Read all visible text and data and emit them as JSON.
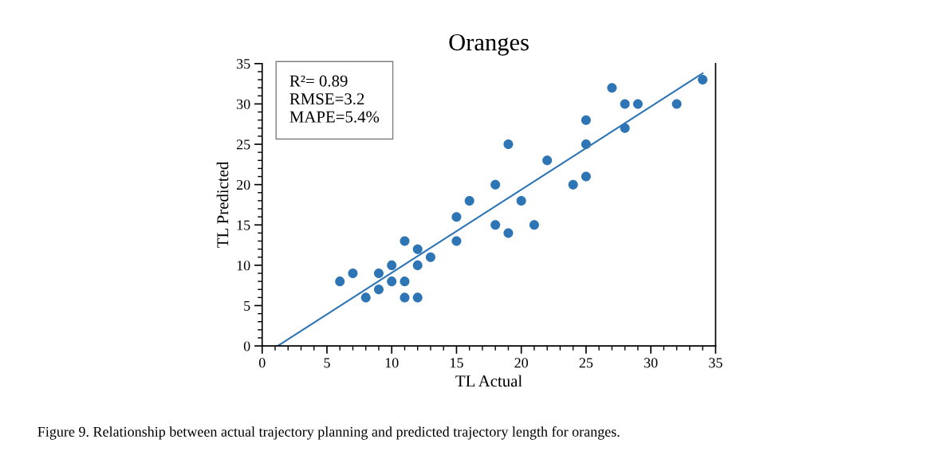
{
  "chart_data": {
    "type": "scatter",
    "title": "Oranges",
    "xlabel": "TL Actual",
    "ylabel": "TL Predicted",
    "annotations": [
      "R²= 0.89\nRMSE=3.2\nMAPE=5.4%",
      "Figure 9. Relationship between actual trajectory planning and predicted trajectory length for oranges."
    ],
    "x": [
      6,
      7,
      8,
      9,
      9,
      10,
      10,
      11,
      11,
      11,
      12,
      12,
      12,
      13,
      15,
      15,
      16,
      18,
      18,
      19,
      19,
      20,
      21,
      22,
      24,
      25,
      25,
      25,
      27,
      28,
      28,
      29,
      32,
      34
    ],
    "series": [
      {
        "color": "#2e75b6",
        "marker": "circle",
        "values": [
          8,
          9,
          6,
          9,
          7,
          10,
          8,
          13,
          8,
          6,
          12,
          10,
          6,
          11,
          16,
          13,
          18,
          20,
          15,
          25,
          14,
          18,
          15,
          23,
          20,
          28,
          25,
          21,
          32,
          30,
          27,
          30,
          30,
          33
        ]
      },
      {
        "type": "line",
        "color": "#2e75b6",
        "x": [
          1.2,
          34
        ],
        "values": [
          0,
          33.8
        ]
      }
    ],
    "xlim": [
      0,
      35
    ],
    "ylim": [
      0,
      35
    ],
    "xticks": [
      0,
      {
        "value": 1,
        "label": null
      },
      {
        "value": 2,
        "label": null
      },
      {
        "value": 3,
        "label": null
      },
      {
        "value": 4,
        "label": null
      },
      5,
      {
        "value": 6,
        "label": null
      },
      {
        "value": 7,
        "label": null
      },
      {
        "value": 8,
        "label": null
      },
      {
        "value": 9,
        "label": null
      },
      10,
      {
        "value": 11,
        "label": null
      },
      {
        "value": 12,
        "label": null
      },
      {
        "value": 13,
        "label": null
      },
      {
        "value": 14,
        "label": null
      },
      15,
      {
        "value": 16,
        "label": null
      },
      {
        "value": 17,
        "label": null
      },
      {
        "value": 18,
        "label": null
      },
      {
        "value": 19,
        "label": null
      },
      20,
      {
        "value": 21,
        "label": null
      },
      {
        "value": 22,
        "label": null
      },
      {
        "value": 23,
        "label": null
      },
      {
        "value": 24,
        "label": null
      },
      25,
      {
        "value": 26,
        "label": null
      },
      {
        "value": 27,
        "label": null
      },
      {
        "value": 28,
        "label": null
      },
      {
        "value": 29,
        "label": null
      },
      30,
      {
        "value": 31,
        "label": null
      },
      {
        "value": 32,
        "label": null
      },
      {
        "value": 33,
        "label": null
      },
      {
        "value": 34,
        "label": null
      },
      35
    ],
    "yticks": [
      0,
      {
        "value": 1,
        "label": null
      },
      {
        "value": 2,
        "label": null
      },
      {
        "value": 3,
        "label": null
      },
      {
        "value": 4,
        "label": null
      },
      5,
      {
        "value": 6,
        "label": null
      },
      {
        "value": 7,
        "label": null
      },
      {
        "value": 8,
        "label": null
      },
      {
        "value": 9,
        "label": null
      },
      10,
      {
        "value": 11,
        "label": null
      },
      {
        "value": 12,
        "label": null
      },
      {
        "value": 13,
        "label": null
      },
      {
        "value": 14,
        "label": null
      },
      15,
      {
        "value": 16,
        "label": null
      },
      {
        "value": 17,
        "label": null
      },
      {
        "value": 18,
        "label": null
      },
      {
        "value": 19,
        "label": null
      },
      20,
      {
        "value": 21,
        "label": null
      },
      {
        "value": 22,
        "label": null
      },
      {
        "value": 23,
        "label": null
      },
      {
        "value": 24,
        "label": null
      },
      25,
      {
        "value": 26,
        "label": null
      },
      {
        "value": 27,
        "label": null
      },
      {
        "value": 28,
        "label": null
      },
      {
        "value": 29,
        "label": null
      },
      30,
      {
        "value": 31,
        "label": null
      },
      {
        "value": 32,
        "label": null
      },
      {
        "value": 33,
        "label": null
      },
      {
        "value": 34,
        "label": null
      },
      35
    ],
    "grid": false
  }
}
